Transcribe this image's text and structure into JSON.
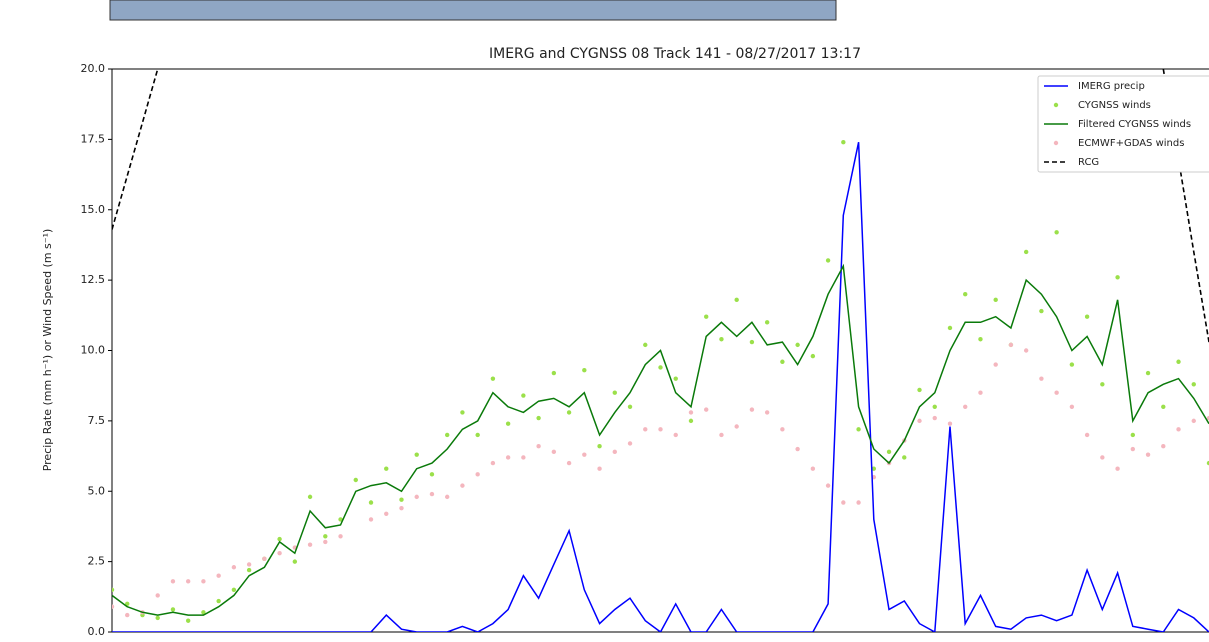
{
  "chart_data": {
    "type": "line",
    "title": "IMERG and CYGNSS 08 Track 141 - 08/27/2017 13:17",
    "ylabel": "Precip Rate (mm h⁻¹) or Wind Speed (m s⁻¹)",
    "ylim": [
      0,
      20
    ],
    "yticks": [
      {
        "value": 0,
        "label": "0.0"
      },
      2.5,
      {
        "value": 5,
        "label": "5.0"
      },
      7.5,
      {
        "value": 10,
        "label": "10.0"
      },
      12.5,
      {
        "value": 15,
        "label": "15.0"
      },
      17.5,
      {
        "value": 20,
        "label": "20.0"
      }
    ],
    "legend": "upper right",
    "series": [
      {
        "name": "IMERG precip",
        "color": "#0000ff",
        "style": "line",
        "values": [
          0,
          0,
          0,
          0,
          0,
          0,
          0,
          0,
          0,
          0,
          0,
          0,
          0,
          0,
          0,
          0,
          0,
          0,
          0.6,
          0.1,
          0,
          0,
          0,
          0.2,
          0,
          0.3,
          0.8,
          2.0,
          1.2,
          2.4,
          3.6,
          1.5,
          0.3,
          0.8,
          1.2,
          0.4,
          0,
          1.0,
          0,
          0,
          0.8,
          0,
          0,
          0,
          0,
          0,
          0,
          1.0,
          14.8,
          17.4,
          4.0,
          0.8,
          1.1,
          0.3,
          0,
          7.3,
          0.3,
          1.3,
          0.2,
          0.1,
          0.5,
          0.6,
          0.4,
          0.6,
          2.2,
          0.8,
          2.1,
          0.2,
          0.1,
          0,
          0.8,
          0.5,
          0
        ]
      },
      {
        "name": "CYGNSS winds",
        "color": "#9be04a",
        "style": "scatter",
        "values": [
          1.5,
          1.0,
          0.6,
          0.5,
          0.8,
          0.4,
          0.7,
          1.1,
          1.5,
          2.2,
          2.6,
          3.3,
          2.5,
          4.8,
          3.4,
          4.0,
          5.4,
          4.6,
          5.8,
          4.7,
          6.3,
          5.6,
          7.0,
          7.8,
          7.0,
          9.0,
          7.4,
          8.4,
          7.6,
          9.2,
          7.8,
          9.3,
          6.6,
          8.5,
          8.0,
          10.2,
          9.4,
          9.0,
          7.5,
          11.2,
          10.4,
          11.8,
          10.3,
          11.0,
          9.6,
          10.2,
          9.8,
          13.2,
          17.4,
          7.2,
          5.8,
          6.4,
          6.2,
          8.6,
          8.0,
          10.8,
          12.0,
          10.4,
          11.8,
          10.2,
          13.5,
          11.4,
          14.2,
          9.5,
          11.2,
          8.8,
          12.6,
          7.0,
          9.2,
          8.0,
          9.6,
          8.8,
          6.0
        ]
      },
      {
        "name": "Filtered CYGNSS winds",
        "color": "#0a7a0a",
        "style": "line",
        "values": [
          1.3,
          0.9,
          0.7,
          0.6,
          0.7,
          0.6,
          0.6,
          0.9,
          1.3,
          2.0,
          2.3,
          3.2,
          2.8,
          4.3,
          3.7,
          3.8,
          5.0,
          5.2,
          5.3,
          5.0,
          5.8,
          6.0,
          6.5,
          7.2,
          7.5,
          8.5,
          8.0,
          7.8,
          8.2,
          8.3,
          8.0,
          8.5,
          7.0,
          7.8,
          8.5,
          9.5,
          10.0,
          8.5,
          8.0,
          10.5,
          11.0,
          10.5,
          11.0,
          10.2,
          10.3,
          9.5,
          10.5,
          12.0,
          13.0,
          8.0,
          6.5,
          6.0,
          6.8,
          8.0,
          8.5,
          10.0,
          11.0,
          11.0,
          11.2,
          10.8,
          12.5,
          12.0,
          11.2,
          10.0,
          10.5,
          9.5,
          11.8,
          7.5,
          8.5,
          8.8,
          9.0,
          8.3,
          7.4
        ]
      },
      {
        "name": "ECMWF+GDAS winds",
        "color": "#f4b6be",
        "style": "scatter",
        "values": [
          0.9,
          0.6,
          0.7,
          1.3,
          1.8,
          1.8,
          1.8,
          2.0,
          2.3,
          2.4,
          2.6,
          2.8,
          3.0,
          3.1,
          3.2,
          3.4,
          null,
          4.0,
          4.2,
          4.4,
          4.8,
          4.9,
          4.8,
          5.2,
          5.6,
          6.0,
          6.2,
          6.2,
          6.6,
          6.4,
          6.0,
          6.3,
          5.8,
          6.4,
          6.7,
          7.2,
          7.2,
          7.0,
          7.8,
          7.9,
          7.0,
          7.3,
          7.9,
          7.8,
          7.2,
          6.5,
          5.8,
          5.2,
          4.6,
          4.6,
          5.5,
          6.0,
          6.8,
          7.5,
          7.6,
          7.4,
          8.0,
          8.5,
          9.5,
          10.2,
          10.0,
          9.0,
          8.5,
          8.0,
          7.0,
          6.2,
          5.8,
          6.5,
          6.3,
          6.6,
          7.2,
          7.5,
          7.6
        ]
      },
      {
        "name": "RCG",
        "color": "#000000",
        "style": "dashed",
        "values": [
          14.3,
          16.2,
          18.1,
          20,
          null,
          null,
          null,
          null,
          null,
          null,
          null,
          null,
          null,
          null,
          null,
          null,
          null,
          null,
          null,
          null,
          null,
          null,
          null,
          null,
          null,
          null,
          null,
          null,
          null,
          null,
          null,
          null,
          null,
          null,
          null,
          null,
          null,
          null,
          null,
          null,
          null,
          null,
          null,
          null,
          null,
          null,
          null,
          null,
          null,
          null,
          null,
          null,
          null,
          null,
          null,
          null,
          null,
          null,
          null,
          null,
          null,
          null,
          null,
          null,
          null,
          null,
          null,
          null,
          null,
          20,
          16.8,
          13.5,
          10.3
        ]
      }
    ]
  }
}
